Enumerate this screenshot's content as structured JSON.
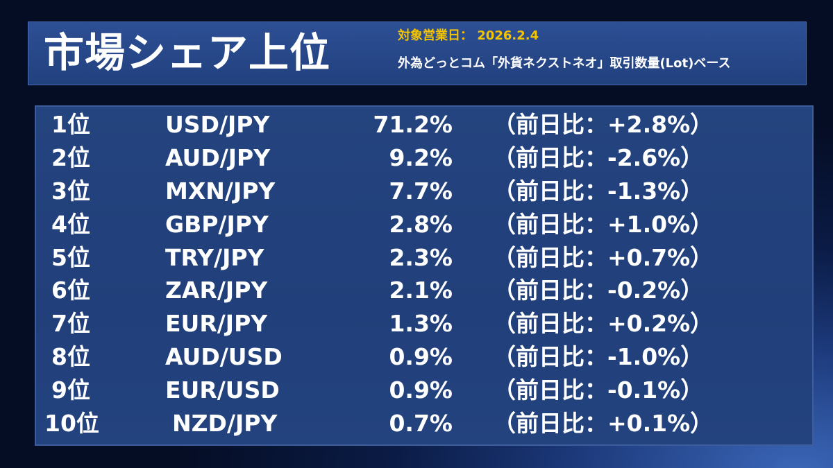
{
  "header": {
    "title": "市場シェア上位",
    "date_line": "対象営業日： 2026.2.4",
    "basis_line": "外為どっとコム「外貨ネクストネオ」取引数量(Lot)ベース"
  },
  "ranking": [
    {
      "rank": "1位",
      "pair": "USD/JPY",
      "share": "71.2%",
      "change": "（前日比：+2.8%）"
    },
    {
      "rank": "2位",
      "pair": "AUD/JPY",
      "share": "9.2%",
      "change": "（前日比：-2.6%）"
    },
    {
      "rank": "3位",
      "pair": "MXN/JPY",
      "share": "7.7%",
      "change": "（前日比：-1.3%）"
    },
    {
      "rank": "4位",
      "pair": "GBP/JPY",
      "share": "2.8%",
      "change": "（前日比：+1.0%）"
    },
    {
      "rank": "5位",
      "pair": "TRY/JPY",
      "share": "2.3%",
      "change": "（前日比：+0.7%）"
    },
    {
      "rank": "6位",
      "pair": "ZAR/JPY",
      "share": "2.1%",
      "change": "（前日比：-0.2%）"
    },
    {
      "rank": "7位",
      "pair": "EUR/JPY",
      "share": "1.3%",
      "change": "（前日比：+0.2%）"
    },
    {
      "rank": "8位",
      "pair": "AUD/USD",
      "share": "0.9%",
      "change": "（前日比：-1.0%）"
    },
    {
      "rank": "9位",
      "pair": "EUR/USD",
      "share": "0.9%",
      "change": "（前日比：-0.1%）"
    },
    {
      "rank": "10位",
      "pair": "NZD/JPY",
      "share": "0.7%",
      "change": "（前日比：+0.1%）"
    }
  ],
  "colors": {
    "accent_date": "#f5c400",
    "panel": "#23437f",
    "text": "#ffffff"
  }
}
